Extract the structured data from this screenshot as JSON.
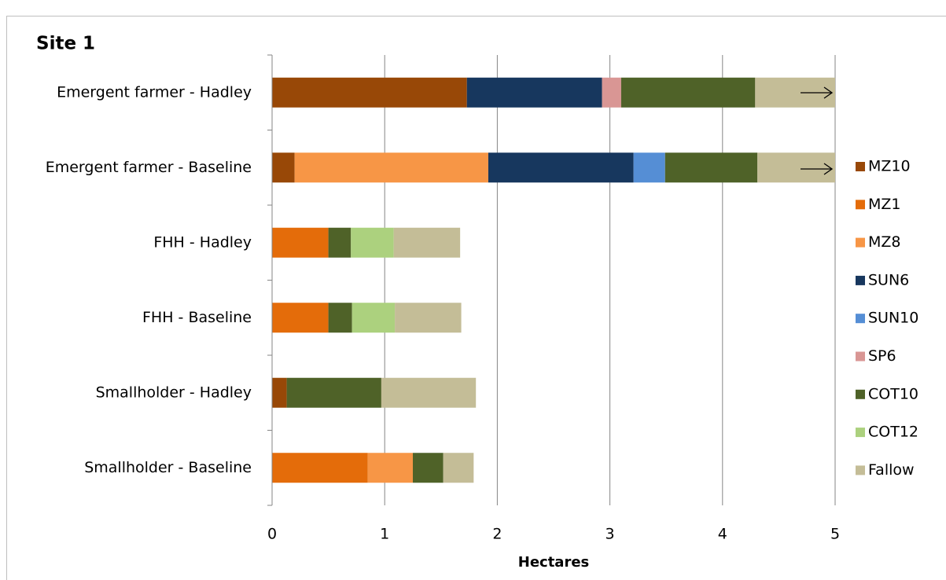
{
  "chart_data": {
    "type": "stacked-barh",
    "title": "Site 1",
    "x_label": "Hectares",
    "categories": [
      "Emergent farmer - Hadley",
      "Emergent farmer - Baseline",
      "FHH - Hadley",
      "FHH - Baseline",
      "Smallholder - Hadley",
      "Smallholder - Baseline"
    ],
    "series": [
      {
        "name": "MZ10",
        "color": "#984807",
        "values": [
          1.73,
          0.2,
          null,
          null,
          0.13,
          null
        ]
      },
      {
        "name": "MZ1",
        "color": "#e46c0a",
        "values": [
          null,
          null,
          0.5,
          0.5,
          null,
          0.85
        ]
      },
      {
        "name": "MZ8",
        "color": "#f79646",
        "values": [
          null,
          1.72,
          null,
          null,
          null,
          0.4
        ]
      },
      {
        "name": "SUN6",
        "color": "#17375e",
        "values": [
          1.2,
          1.29,
          null,
          null,
          null,
          null
        ]
      },
      {
        "name": "SUN10",
        "color": "#558ed5",
        "values": [
          null,
          0.28,
          null,
          null,
          null,
          null
        ]
      },
      {
        "name": "SP6",
        "color": "#d99694",
        "values": [
          0.17,
          null,
          null,
          null,
          null,
          null
        ]
      },
      {
        "name": "COT10",
        "color": "#4f6228",
        "values": [
          1.19,
          0.82,
          0.2,
          0.21,
          0.84,
          0.27
        ]
      },
      {
        "name": "COT12",
        "color": "#acd17e",
        "values": [
          null,
          null,
          0.38,
          0.38,
          null,
          null
        ]
      },
      {
        "name": "Fallow",
        "color": "#c4bd97",
        "values": [
          0.71,
          0.7,
          0.59,
          0.59,
          0.84,
          0.27
        ]
      }
    ],
    "xlim": [
      0,
      5
    ],
    "xticks": [
      0,
      1,
      2,
      3,
      4,
      5
    ],
    "grid": true,
    "legend": "right"
  }
}
